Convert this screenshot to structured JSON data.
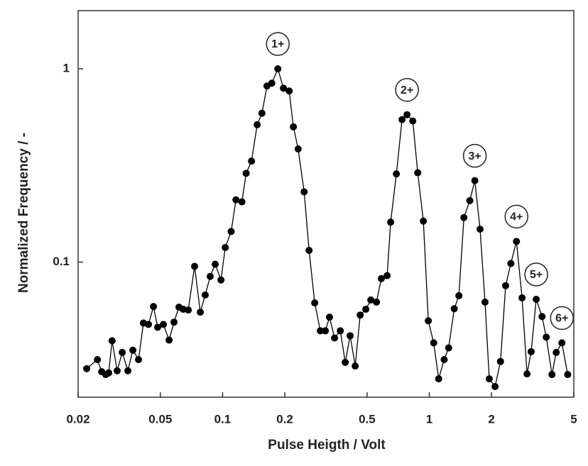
{
  "chart_data": {
    "type": "line",
    "xlabel": "Pulse Heigth  / Volt",
    "ylabel": "Normalized Frequency  / -",
    "x": [
      0.022,
      0.0248,
      0.026,
      0.0272,
      0.0281,
      0.0292,
      0.0309,
      0.0327,
      0.0348,
      0.0368,
      0.0392,
      0.0414,
      0.0438,
      0.0463,
      0.0485,
      0.0517,
      0.0551,
      0.0582,
      0.0615,
      0.0645,
      0.0682,
      0.0732,
      0.078,
      0.0824,
      0.0871,
      0.0921,
      0.0982,
      0.103,
      0.11,
      0.116,
      0.124,
      0.13,
      0.138,
      0.147,
      0.155,
      0.164,
      0.173,
      0.185,
      0.197,
      0.21,
      0.22,
      0.232,
      0.248,
      0.262,
      0.279,
      0.297,
      0.314,
      0.329,
      0.348,
      0.371,
      0.392,
      0.414,
      0.438,
      0.463,
      0.493,
      0.521,
      0.555,
      0.586,
      0.625,
      0.65,
      0.693,
      0.738,
      0.78,
      0.832,
      0.879,
      0.936,
      0.989,
      1.05,
      1.11,
      1.18,
      1.24,
      1.32,
      1.39,
      1.47,
      1.57,
      1.66,
      1.76,
      1.86,
      1.95,
      2.08,
      2.21,
      2.34,
      2.48,
      2.64,
      2.81,
      2.97,
      3.11,
      3.29,
      3.51,
      3.68,
      3.92,
      4.11,
      4.38,
      4.67
    ],
    "series": [
      {
        "color": "#000000",
        "values": [
          0.0281,
          0.0313,
          0.0271,
          0.0262,
          0.0267,
          0.0392,
          0.0274,
          0.0341,
          0.0274,
          0.035,
          0.0313,
          0.0484,
          0.0476,
          0.0589,
          0.046,
          0.0476,
          0.0395,
          0.0489,
          0.0585,
          0.057,
          0.0565,
          0.0951,
          0.0551,
          0.0676,
          0.0843,
          0.0975,
          0.0808,
          0.119,
          0.144,
          0.21,
          0.205,
          0.288,
          0.333,
          0.514,
          0.589,
          0.815,
          0.843,
          1.0,
          0.794,
          0.768,
          0.501,
          0.385,
          0.231,
          0.115,
          0.0615,
          0.0441,
          0.0441,
          0.0519,
          0.0405,
          0.0441,
          0.0303,
          0.0416,
          0.029,
          0.0532,
          0.057,
          0.0637,
          0.0621,
          0.0822,
          0.0851,
          0.161,
          0.286,
          0.546,
          0.579,
          0.537,
          0.29,
          0.163,
          0.0497,
          0.0382,
          0.0249,
          0.0313,
          0.036,
          0.0574,
          0.067,
          0.17,
          0.208,
          0.264,
          0.148,
          0.0621,
          0.0249,
          0.0227,
          0.0306,
          0.0755,
          0.0984,
          0.128,
          0.0653,
          0.0264,
          0.0344,
          0.0642,
          0.0523,
          0.0409,
          0.0262,
          0.0341,
          0.0382,
          0.0262
        ]
      }
    ],
    "xlim": [
      0.02,
      5
    ],
    "ylim": [
      0.02,
      2
    ],
    "xticks": [
      0.02,
      0.05,
      0.1,
      0.2,
      0.5,
      1,
      2,
      5
    ],
    "yticks": [
      0.1,
      1
    ],
    "xscale": "log",
    "yscale": "log",
    "annotations": [
      "1+",
      "2+",
      "3+",
      "4+",
      "5+",
      "6+"
    ]
  }
}
